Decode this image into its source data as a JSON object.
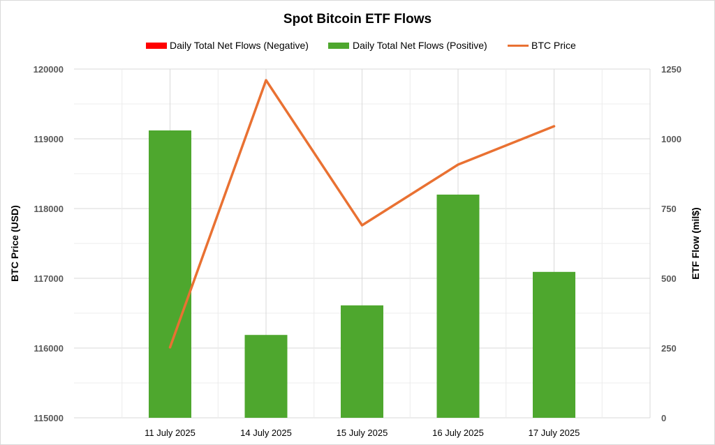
{
  "chart_data": {
    "type": "bar",
    "title": "Spot Bitcoin ETF Flows",
    "categories": [
      "11 July 2025",
      "14 July 2025",
      "15 July 2025",
      "16 July 2025",
      "17 July 2025"
    ],
    "series": [
      {
        "name": "Daily Total Net Flows (Negative)",
        "type": "bar",
        "axis": "right",
        "color": "#ff0000",
        "values": [
          0,
          0,
          0,
          0,
          0
        ]
      },
      {
        "name": "Daily Total Net Flows (Positive)",
        "type": "bar",
        "axis": "right",
        "color": "#4ea72e",
        "values": [
          1030,
          297,
          403,
          800,
          523
        ]
      },
      {
        "name": "BTC Price",
        "type": "line",
        "axis": "left",
        "color": "#e97132",
        "values": [
          116010,
          119840,
          117760,
          118630,
          119180
        ]
      }
    ],
    "ylabel": "BTC Price (USD)",
    "y2label": "ETF Flow (mil$)",
    "ylim": [
      115000,
      120000
    ],
    "y2lim": [
      0,
      1250
    ],
    "yticks": [
      "115000",
      "116000",
      "117000",
      "118000",
      "119000",
      "120000"
    ],
    "y2ticks": [
      "0",
      "250",
      "500",
      "750",
      "1000",
      "1250"
    ],
    "grid": true,
    "legend_position": "top"
  }
}
